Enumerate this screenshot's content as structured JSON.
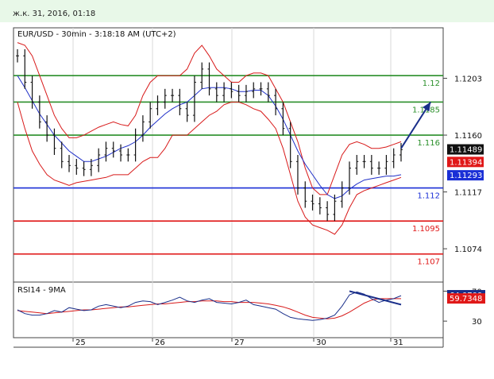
{
  "timestamp": "ж.к. 31, 2016, 01:18",
  "chart_data": {
    "type": "line",
    "title": "EUR/USD - 30min - 3:18:18 AM (UTC+2)",
    "price_axis": {
      "ylim": [
        1.105,
        1.124
      ],
      "ticks": [
        "1.1203",
        "1.1160",
        "1.1117",
        "1.1074"
      ]
    },
    "x_ticks": [
      "25",
      "26",
      "27",
      "30",
      "31"
    ],
    "levels": [
      {
        "value": 1.1205,
        "label": "1.12",
        "color": "#2a8f2a"
      },
      {
        "value": 1.1185,
        "label": "1.1185",
        "color": "#2a8f2a"
      },
      {
        "value": 1.116,
        "label": "1.116",
        "color": "#2a8f2a"
      },
      {
        "value": 1.112,
        "label": "1.112",
        "color": "#1a2fd6"
      },
      {
        "value": 1.1095,
        "label": "1.1095",
        "color": "#e01818"
      },
      {
        "value": 1.107,
        "label": "1.107",
        "color": "#e01818"
      }
    ],
    "price_badges": [
      {
        "value": 1.11489,
        "label": "1.11489",
        "color": "#111111"
      },
      {
        "value": 1.11394,
        "label": "1.11394",
        "color": "#e01818"
      },
      {
        "value": 1.11293,
        "label": "1.11293",
        "color": "#1a2fd6"
      }
    ],
    "price_series": [
      1.122,
      1.12,
      1.1185,
      1.117,
      1.116,
      1.115,
      1.114,
      1.1137,
      1.1135,
      1.1134,
      1.1137,
      1.1145,
      1.115,
      1.1148,
      1.1145,
      1.1145,
      1.116,
      1.117,
      1.118,
      1.1185,
      1.119,
      1.119,
      1.118,
      1.1175,
      1.12,
      1.121,
      1.1195,
      1.119,
      1.1195,
      1.1193,
      1.119,
      1.1193,
      1.1195,
      1.1195,
      1.119,
      1.118,
      1.1165,
      1.114,
      1.112,
      1.111,
      1.1108,
      1.1105,
      1.11,
      1.111,
      1.112,
      1.1135,
      1.114,
      1.114,
      1.1135,
      1.1135,
      1.114,
      1.1145,
      1.1149
    ],
    "bands": {
      "upper": [
        1.123,
        1.1228,
        1.122,
        1.1205,
        1.119,
        1.1175,
        1.1165,
        1.1158,
        1.1158,
        1.116,
        1.1163,
        1.1166,
        1.1168,
        1.117,
        1.1168,
        1.1167,
        1.1175,
        1.119,
        1.12,
        1.1205,
        1.1205,
        1.1205,
        1.1205,
        1.121,
        1.1222,
        1.1228,
        1.122,
        1.121,
        1.1205,
        1.12,
        1.12,
        1.1205,
        1.1207,
        1.1207,
        1.1205,
        1.1195,
        1.1185,
        1.117,
        1.1155,
        1.1135,
        1.112,
        1.1115,
        1.1115,
        1.113,
        1.1145,
        1.1153,
        1.1155,
        1.1153,
        1.115,
        1.115,
        1.1151,
        1.1153,
        1.1155
      ],
      "lower": [
        1.1185,
        1.1165,
        1.1148,
        1.1138,
        1.113,
        1.1126,
        1.1124,
        1.1122,
        1.1124,
        1.1125,
        1.1126,
        1.1127,
        1.1128,
        1.113,
        1.113,
        1.113,
        1.1135,
        1.114,
        1.1143,
        1.1143,
        1.115,
        1.116,
        1.116,
        1.116,
        1.1165,
        1.117,
        1.1175,
        1.1178,
        1.1183,
        1.1185,
        1.1185,
        1.1183,
        1.118,
        1.1178,
        1.1172,
        1.1165,
        1.115,
        1.113,
        1.111,
        1.1098,
        1.1092,
        1.109,
        1.1088,
        1.1085,
        1.1092,
        1.1105,
        1.1115,
        1.1118,
        1.112,
        1.1122,
        1.1124,
        1.1126,
        1.1128
      ],
      "ma": [
        1.1205,
        1.1196,
        1.1186,
        1.1176,
        1.1168,
        1.116,
        1.1154,
        1.1148,
        1.1144,
        1.114,
        1.114,
        1.1142,
        1.1144,
        1.1147,
        1.115,
        1.1152,
        1.1155,
        1.116,
        1.1166,
        1.1171,
        1.1176,
        1.118,
        1.1183,
        1.1185,
        1.119,
        1.1195,
        1.1196,
        1.1196,
        1.1196,
        1.1195,
        1.1193,
        1.1193,
        1.1194,
        1.1194,
        1.119,
        1.1182,
        1.1172,
        1.116,
        1.1148,
        1.1138,
        1.113,
        1.1122,
        1.1115,
        1.1112,
        1.1114,
        1.1119,
        1.1123,
        1.1126,
        1.1127,
        1.1128,
        1.1129,
        1.1129,
        1.113
      ]
    },
    "projection_arrow": {
      "from": [
        52,
        1.115
      ],
      "to": [
        56,
        1.1185
      ],
      "color": "#1a2f8a"
    },
    "rsi": {
      "label": "RSI14 - 9MA",
      "ylim": [
        10,
        80
      ],
      "ticks": [
        "70",
        "30"
      ],
      "badges": [
        {
          "value": 64.0709,
          "label": "64.0709",
          "color": "#1a2f8a"
        },
        {
          "value": 59.7348,
          "label": "59.7348",
          "color": "#e01818"
        }
      ],
      "rsi_series": [
        45,
        40,
        38,
        38,
        40,
        44,
        42,
        48,
        46,
        44,
        45,
        50,
        52,
        50,
        48,
        50,
        55,
        57,
        56,
        52,
        55,
        58,
        62,
        57,
        55,
        58,
        60,
        55,
        54,
        53,
        55,
        58,
        52,
        50,
        48,
        46,
        40,
        35,
        33,
        32,
        31,
        32,
        34,
        38,
        50,
        65,
        69,
        66,
        60,
        55,
        58,
        60,
        64
      ],
      "ma_series": [
        44,
        43,
        42,
        41,
        40,
        41,
        42,
        43,
        44,
        45,
        45,
        46,
        47,
        48,
        49,
        49,
        50,
        51,
        52,
        53,
        53,
        54,
        55,
        56,
        56,
        57,
        57,
        57,
        56,
        56,
        55,
        55,
        55,
        54,
        53,
        51,
        49,
        46,
        42,
        38,
        35,
        34,
        33,
        34,
        37,
        42,
        48,
        54,
        58,
        60,
        60,
        60,
        60
      ],
      "divergence": {
        "from": [
          45,
          70
        ],
        "to": [
          52,
          52
        ],
        "color": "#1a2f8a"
      }
    }
  }
}
